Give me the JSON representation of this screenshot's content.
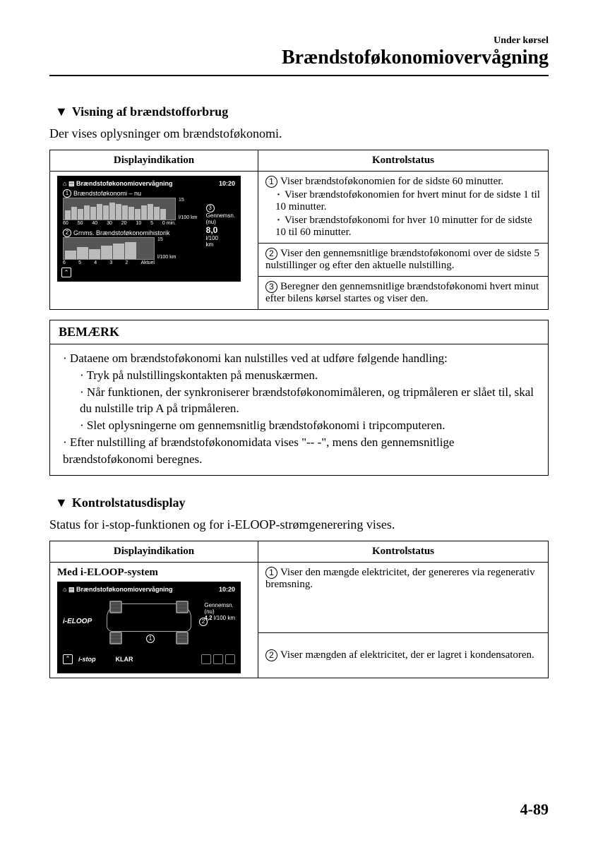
{
  "header": {
    "small": "Under kørsel",
    "large": "Brændstoføkonomiovervågning"
  },
  "section1": {
    "heading": "Visning af brændstofforbrug",
    "intro": "Der vises oplysninger om brændstoføkonomi.",
    "table": {
      "col1": "Displayindikation",
      "col2": "Kontrolstatus"
    },
    "display": {
      "title": "Brændstoføkonomiovervågning",
      "time": "10:20",
      "row1_label": "Brændstoføkonomi – nu",
      "row2_label": "Grnms. Brændstoføkonomihistorik",
      "y_max": "15",
      "y_unit": "l/100 km",
      "x1_labels": [
        "60",
        "50",
        "40",
        "30",
        "20",
        "10",
        "5",
        "0 min."
      ],
      "x2_labels": [
        "6",
        "5",
        "4",
        "3",
        "2",
        "Aktuel"
      ],
      "avg_label": "Gennemsn.\n(nu)",
      "avg_value": "8,0",
      "avg_unit": "l/100\nkm",
      "bars1": [
        6,
        8,
        7,
        9,
        8,
        10,
        9,
        11,
        10,
        9,
        8,
        7,
        9,
        10,
        8,
        7
      ],
      "bars2": [
        5,
        7,
        6,
        8,
        9,
        10
      ],
      "bar_color": "#bbbbbb",
      "bg_color": "#000000"
    },
    "status": {
      "item1_lead": "Viser brændstoføkonomien for de sidste 60 minutter.",
      "item1_sub1": "Viser brændstoføkonomien for hvert minut for de sidste 1 til 10 minutter.",
      "item1_sub2": "Viser brændstoføkonomi for hver 10 minutter for de sidste 10 til 60 minutter.",
      "item2": "Viser den gennemsnitlige brændstoføkonomi over de sidste 5 nulstillinger og efter den aktuelle nulstilling.",
      "item3": "Beregner den gennemsnitlige brændstoføkonomi hvert minut efter bilens kørsel startes og viser den."
    }
  },
  "note": {
    "title": "BEMÆRK",
    "line1": "Dataene om brændstoføkonomi kan nulstilles ved at udføre følgende handling:",
    "sub1": "Tryk på nulstillingskontakten på menuskærmen.",
    "sub2": "Når funktionen, der synkroniserer brændstoføkonomimåleren, og tripmåleren er slået til, skal du nulstille trip A på tripmåleren.",
    "sub3": "Slet oplysningerne om gennemsnitlig brændstoføkonomi i tripcomputeren.",
    "line2": "Efter nulstilling af brændstoføkonomidata vises \"-- -\", mens den gennemsnitlige brændstoføkonomi beregnes."
  },
  "section2": {
    "heading": "Kontrolstatusdisplay",
    "intro": "Status for i-stop-funktionen og for i-ELOOP-strømgenerering vises.",
    "table": {
      "col1": "Displayindikation",
      "col2": "Kontrolstatus"
    },
    "display": {
      "subtitle": "Med i-ELOOP-system",
      "title": "Brændstoføkonomiovervågning",
      "time": "10:20",
      "ieloop": "i-ELOOP",
      "avg_label": "Gennemsn.\n(nu)",
      "avg_value": "4,2",
      "avg_unit": "l/100 km",
      "istop": "i-stop",
      "ready": "KLAR"
    },
    "status": {
      "item1": "Viser den mængde elektricitet, der genereres via regenerativ bremsning.",
      "item2": "Viser mængden af elektricitet, der er lagret i kondensatoren."
    }
  },
  "page_number": "4-89",
  "colors": {
    "text": "#000000",
    "background": "#ffffff",
    "display_bg": "#000000",
    "display_fg": "#ffffff",
    "bar_fill": "#bbbbbb",
    "border": "#000000"
  },
  "typography": {
    "body_family": "Times New Roman",
    "header_large_pt": 28,
    "header_small_pt": 14,
    "section_heading_pt": 18,
    "body_pt": 17,
    "table_pt": 15,
    "display_mock_pt": 9
  }
}
